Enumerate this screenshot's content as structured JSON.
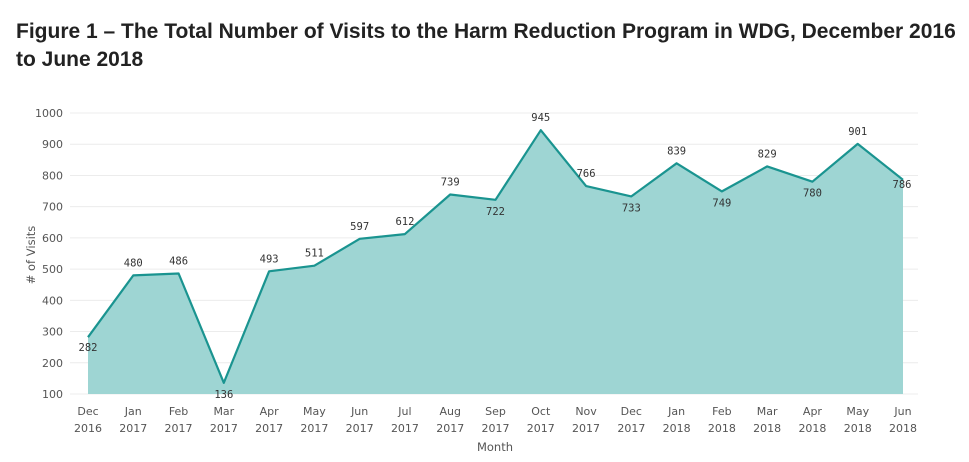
{
  "figure_title": "Figure 1 – The Total Number of Visits to the Harm Reduction Program in WDG, December 2016 to June 2018",
  "chart_data": {
    "type": "area",
    "title": "Figure 1 – The Total Number of Visits to the Harm Reduction Program in WDG, December 2016 to June 2018",
    "xlabel": "Month",
    "ylabel": "# of Visits",
    "ylim": [
      100,
      1000
    ],
    "yticks": [
      100,
      200,
      300,
      400,
      500,
      600,
      700,
      800,
      900,
      1000
    ],
    "grid": true,
    "categories": [
      [
        "Dec",
        "2016"
      ],
      [
        "Jan",
        "2017"
      ],
      [
        "Feb",
        "2017"
      ],
      [
        "Mar",
        "2017"
      ],
      [
        "Apr",
        "2017"
      ],
      [
        "May",
        "2017"
      ],
      [
        "Jun",
        "2017"
      ],
      [
        "Jul",
        "2017"
      ],
      [
        "Aug",
        "2017"
      ],
      [
        "Sep",
        "2017"
      ],
      [
        "Oct",
        "2017"
      ],
      [
        "Nov",
        "2017"
      ],
      [
        "Dec",
        "2017"
      ],
      [
        "Jan",
        "2018"
      ],
      [
        "Feb",
        "2018"
      ],
      [
        "Mar",
        "2018"
      ],
      [
        "Apr",
        "2018"
      ],
      [
        "May",
        "2018"
      ],
      [
        "Jun",
        "2018"
      ]
    ],
    "values": [
      282,
      480,
      486,
      136,
      493,
      511,
      597,
      612,
      739,
      722,
      945,
      766,
      733,
      839,
      749,
      829,
      780,
      901,
      786
    ],
    "data_labels": [
      "282",
      "480",
      "486",
      "136",
      "493",
      "511",
      "597",
      "612",
      "739",
      "722",
      "945",
      "766",
      "733",
      "839",
      "749",
      "829",
      "780",
      "901",
      "786"
    ],
    "colors": {
      "line": "#1a9490",
      "fill": "#9ed5d3",
      "grid": "#ececec"
    }
  }
}
